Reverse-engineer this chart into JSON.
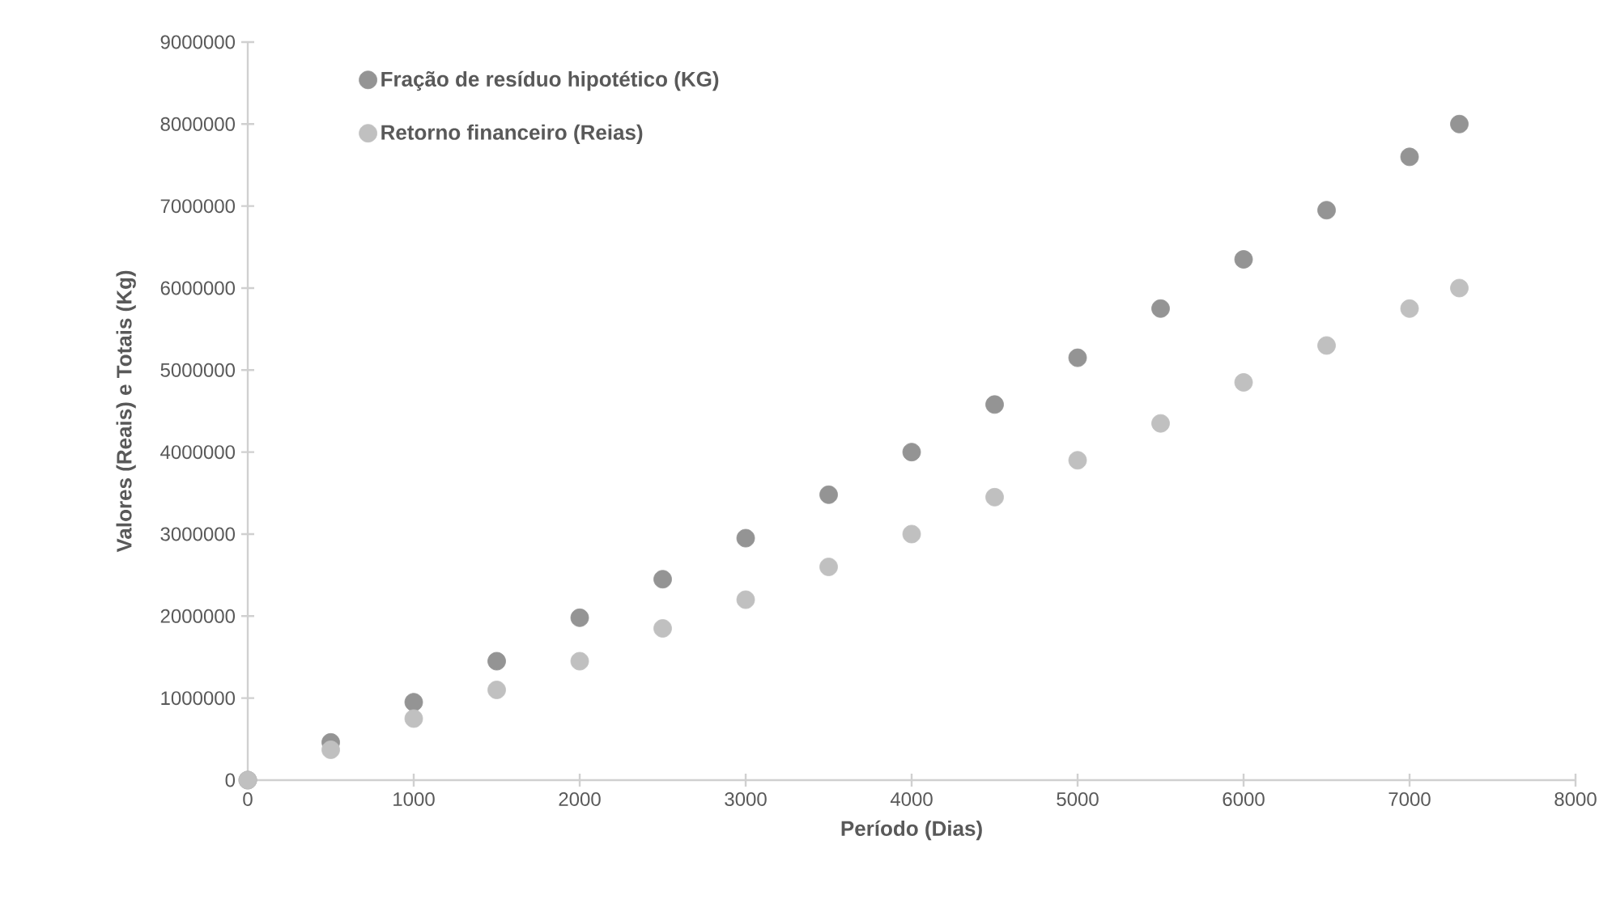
{
  "chart_data": {
    "type": "scatter",
    "xlabel": "Período (Dias)",
    "ylabel": "Valores (Reais) e Totais (Kg)",
    "xlim": [
      0,
      8000
    ],
    "xticks": [
      0,
      1000,
      2000,
      3000,
      4000,
      5000,
      6000,
      7000,
      8000
    ],
    "ylim": [
      0,
      9000000
    ],
    "yticks": [
      0,
      1000000,
      2000000,
      3000000,
      4000000,
      5000000,
      6000000,
      7000000,
      8000000,
      9000000
    ],
    "grid": false,
    "legend": "top left",
    "series": [
      {
        "name": "Fração de resíduo hipotético (KG)",
        "color": "#949494",
        "x": [
          0,
          500,
          1000,
          1500,
          2000,
          2500,
          3000,
          3500,
          4000,
          4500,
          5000,
          5500,
          6000,
          6500,
          7000,
          7300
        ],
        "values": [
          0,
          460000,
          950000,
          1450000,
          1980000,
          2450000,
          2950000,
          3480000,
          4000000,
          4580000,
          5150000,
          5750000,
          6350000,
          6950000,
          7600000,
          8000000
        ]
      },
      {
        "name": "Retorno financeiro (Reias)",
        "color": "#c0c0c0",
        "x": [
          0,
          500,
          1000,
          1500,
          2000,
          2500,
          3000,
          3500,
          4000,
          4500,
          5000,
          5500,
          6000,
          6500,
          7000,
          7300
        ],
        "values": [
          0,
          370000,
          750000,
          1100000,
          1450000,
          1850000,
          2200000,
          2600000,
          3000000,
          3450000,
          3900000,
          4350000,
          4850000,
          5300000,
          5750000,
          6000000
        ]
      }
    ]
  }
}
